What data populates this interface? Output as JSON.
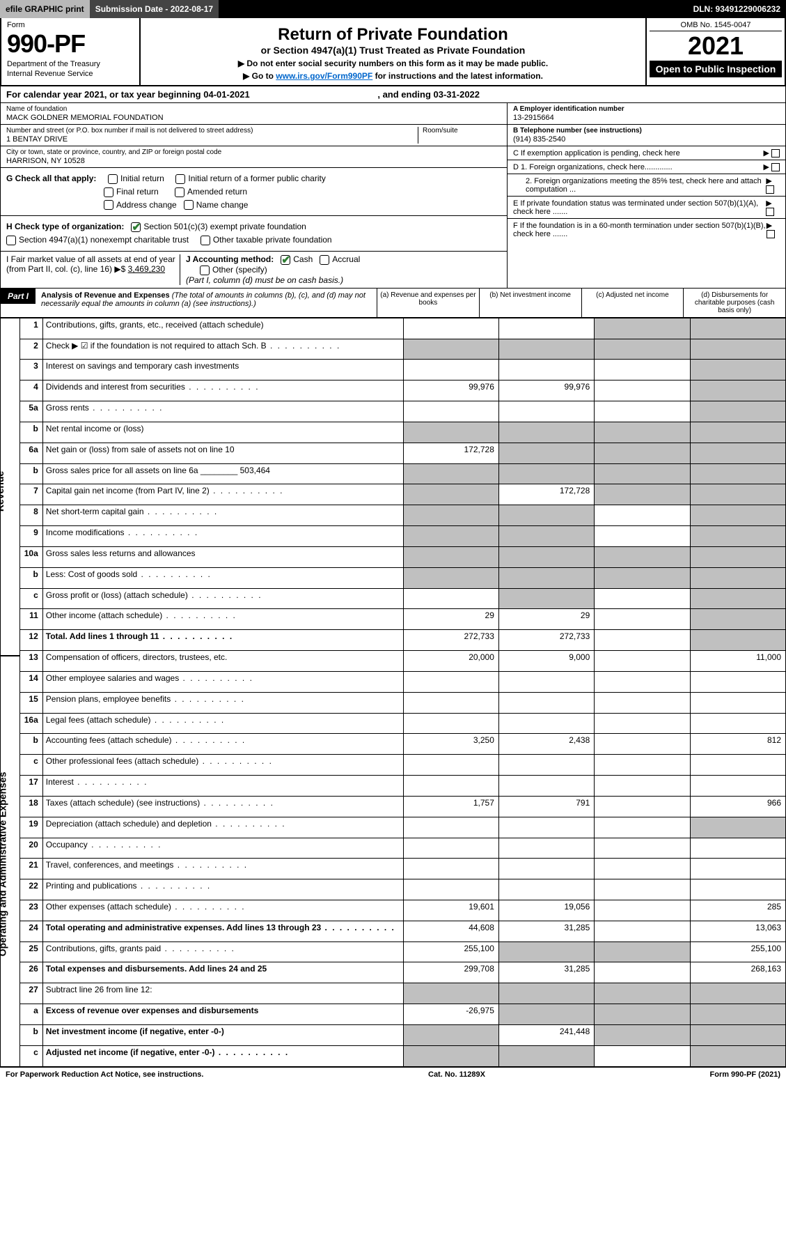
{
  "topbar": {
    "efile": "efile GRAPHIC print",
    "subdate_label": "Submission Date - 2022-08-17",
    "dln": "DLN: 93491229006232"
  },
  "formhead": {
    "form_word": "Form",
    "form_num": "990-PF",
    "dept": "Department of the Treasury",
    "irs": "Internal Revenue Service",
    "title": "Return of Private Foundation",
    "subtitle": "or Section 4947(a)(1) Trust Treated as Private Foundation",
    "note1": "▶ Do not enter social security numbers on this form as it may be made public.",
    "note2_pre": "▶ Go to ",
    "note2_link": "www.irs.gov/Form990PF",
    "note2_post": " for instructions and the latest information.",
    "omb": "OMB No. 1545-0047",
    "year": "2021",
    "inspect": "Open to Public Inspection"
  },
  "calendar": {
    "text_pre": "For calendar year 2021, or tax year beginning ",
    "begin": "04-01-2021",
    "mid": " , and ending ",
    "end": "03-31-2022"
  },
  "foundation": {
    "name_label": "Name of foundation",
    "name": "MACK GOLDNER MEMORIAL FOUNDATION",
    "addr_label": "Number and street (or P.O. box number if mail is not delivered to street address)",
    "addr": "1 BENTAY DRIVE",
    "room_label": "Room/suite",
    "city_label": "City or town, state or province, country, and ZIP or foreign postal code",
    "city": "HARRISON, NY  10528"
  },
  "right_info": {
    "a_label": "A Employer identification number",
    "a_val": "13-2915664",
    "b_label": "B Telephone number (see instructions)",
    "b_val": "(914) 835-2540",
    "c_label": "C If exemption application is pending, check here",
    "d1": "D 1. Foreign organizations, check here.............",
    "d2": "2. Foreign organizations meeting the 85% test, check here and attach computation ...",
    "e": "E  If private foundation status was terminated under section 507(b)(1)(A), check here .......",
    "f": "F  If the foundation is in a 60-month termination under section 507(b)(1)(B), check here ......."
  },
  "g_section": {
    "g_label": "G Check all that apply:",
    "initial": "Initial return",
    "initial_former": "Initial return of a former public charity",
    "final": "Final return",
    "amended": "Amended return",
    "address": "Address change",
    "name_change": "Name change",
    "h_label": "H Check type of organization:",
    "h_501c3": "Section 501(c)(3) exempt private foundation",
    "h_4947": "Section 4947(a)(1) nonexempt charitable trust",
    "h_other": "Other taxable private foundation",
    "i_label": "I Fair market value of all assets at end of year (from Part II, col. (c), line 16) ▶$",
    "i_val": "3,469,230",
    "j_label": "J Accounting method:",
    "j_cash": "Cash",
    "j_accrual": "Accrual",
    "j_other": "Other (specify)",
    "j_note": "(Part I, column (d) must be on cash basis.)"
  },
  "part1": {
    "label": "Part I",
    "title": "Analysis of Revenue and Expenses",
    "title_note": " (The total of amounts in columns (b), (c), and (d) may not necessarily equal the amounts in column (a) (see instructions).)",
    "col_a": "(a) Revenue and expenses per books",
    "col_b": "(b) Net investment income",
    "col_c": "(c) Adjusted net income",
    "col_d": "(d) Disbursements for charitable purposes (cash basis only)"
  },
  "side_labels": {
    "revenue": "Revenue",
    "expenses": "Operating and Administrative Expenses"
  },
  "rows": [
    {
      "n": "1",
      "d": "Contributions, gifts, grants, etc., received (attach schedule)",
      "a": "",
      "b": "",
      "c": "g",
      "dd": "g"
    },
    {
      "n": "2",
      "d": "Check ▶ ☑ if the foundation is not required to attach Sch. B",
      "dots": true,
      "a": "g",
      "b": "g",
      "c": "g",
      "dd": "g"
    },
    {
      "n": "3",
      "d": "Interest on savings and temporary cash investments",
      "a": "",
      "b": "",
      "c": "",
      "dd": "g"
    },
    {
      "n": "4",
      "d": "Dividends and interest from securities",
      "dots": true,
      "a": "99,976",
      "b": "99,976",
      "c": "",
      "dd": "g"
    },
    {
      "n": "5a",
      "d": "Gross rents",
      "dots": true,
      "a": "",
      "b": "",
      "c": "",
      "dd": "g"
    },
    {
      "n": "b",
      "d": "Net rental income or (loss)",
      "a": "g",
      "b": "g",
      "c": "g",
      "dd": "g"
    },
    {
      "n": "6a",
      "d": "Net gain or (loss) from sale of assets not on line 10",
      "a": "172,728",
      "b": "g",
      "c": "g",
      "dd": "g"
    },
    {
      "n": "b",
      "d": "Gross sales price for all assets on line 6a ________ 503,464",
      "a": "g",
      "b": "g",
      "c": "g",
      "dd": "g"
    },
    {
      "n": "7",
      "d": "Capital gain net income (from Part IV, line 2)",
      "dots": true,
      "a": "g",
      "b": "172,728",
      "c": "g",
      "dd": "g"
    },
    {
      "n": "8",
      "d": "Net short-term capital gain",
      "dots": true,
      "a": "g",
      "b": "g",
      "c": "",
      "dd": "g"
    },
    {
      "n": "9",
      "d": "Income modifications",
      "dots": true,
      "a": "g",
      "b": "g",
      "c": "",
      "dd": "g"
    },
    {
      "n": "10a",
      "d": "Gross sales less returns and allowances",
      "a": "g",
      "b": "g",
      "c": "g",
      "dd": "g"
    },
    {
      "n": "b",
      "d": "Less: Cost of goods sold",
      "dots": true,
      "a": "g",
      "b": "g",
      "c": "g",
      "dd": "g"
    },
    {
      "n": "c",
      "d": "Gross profit or (loss) (attach schedule)",
      "dots": true,
      "a": "",
      "b": "g",
      "c": "",
      "dd": "g"
    },
    {
      "n": "11",
      "d": "Other income (attach schedule)",
      "dots": true,
      "a": "29",
      "b": "29",
      "c": "",
      "dd": "g"
    },
    {
      "n": "12",
      "d": "Total. Add lines 1 through 11",
      "dots": true,
      "bold": true,
      "a": "272,733",
      "b": "272,733",
      "c": "",
      "dd": "g"
    },
    {
      "n": "13",
      "d": "Compensation of officers, directors, trustees, etc.",
      "a": "20,000",
      "b": "9,000",
      "c": "",
      "dd": "11,000"
    },
    {
      "n": "14",
      "d": "Other employee salaries and wages",
      "dots": true,
      "a": "",
      "b": "",
      "c": "",
      "dd": ""
    },
    {
      "n": "15",
      "d": "Pension plans, employee benefits",
      "dots": true,
      "a": "",
      "b": "",
      "c": "",
      "dd": ""
    },
    {
      "n": "16a",
      "d": "Legal fees (attach schedule)",
      "dots": true,
      "a": "",
      "b": "",
      "c": "",
      "dd": ""
    },
    {
      "n": "b",
      "d": "Accounting fees (attach schedule)",
      "dots": true,
      "a": "3,250",
      "b": "2,438",
      "c": "",
      "dd": "812"
    },
    {
      "n": "c",
      "d": "Other professional fees (attach schedule)",
      "dots": true,
      "a": "",
      "b": "",
      "c": "",
      "dd": ""
    },
    {
      "n": "17",
      "d": "Interest",
      "dots": true,
      "a": "",
      "b": "",
      "c": "",
      "dd": ""
    },
    {
      "n": "18",
      "d": "Taxes (attach schedule) (see instructions)",
      "dots": true,
      "a": "1,757",
      "b": "791",
      "c": "",
      "dd": "966"
    },
    {
      "n": "19",
      "d": "Depreciation (attach schedule) and depletion",
      "dots": true,
      "a": "",
      "b": "",
      "c": "",
      "dd": "g"
    },
    {
      "n": "20",
      "d": "Occupancy",
      "dots": true,
      "a": "",
      "b": "",
      "c": "",
      "dd": ""
    },
    {
      "n": "21",
      "d": "Travel, conferences, and meetings",
      "dots": true,
      "a": "",
      "b": "",
      "c": "",
      "dd": ""
    },
    {
      "n": "22",
      "d": "Printing and publications",
      "dots": true,
      "a": "",
      "b": "",
      "c": "",
      "dd": ""
    },
    {
      "n": "23",
      "d": "Other expenses (attach schedule)",
      "dots": true,
      "a": "19,601",
      "b": "19,056",
      "c": "",
      "dd": "285"
    },
    {
      "n": "24",
      "d": "Total operating and administrative expenses. Add lines 13 through 23",
      "dots": true,
      "bold": true,
      "a": "44,608",
      "b": "31,285",
      "c": "",
      "dd": "13,063"
    },
    {
      "n": "25",
      "d": "Contributions, gifts, grants paid",
      "dots": true,
      "a": "255,100",
      "b": "g",
      "c": "g",
      "dd": "255,100"
    },
    {
      "n": "26",
      "d": "Total expenses and disbursements. Add lines 24 and 25",
      "bold": true,
      "a": "299,708",
      "b": "31,285",
      "c": "",
      "dd": "268,163"
    },
    {
      "n": "27",
      "d": "Subtract line 26 from line 12:",
      "a": "g",
      "b": "g",
      "c": "g",
      "dd": "g"
    },
    {
      "n": "a",
      "d": "Excess of revenue over expenses and disbursements",
      "bold": true,
      "a": "-26,975",
      "b": "g",
      "c": "g",
      "dd": "g"
    },
    {
      "n": "b",
      "d": "Net investment income (if negative, enter -0-)",
      "bold": true,
      "a": "g",
      "b": "241,448",
      "c": "g",
      "dd": "g"
    },
    {
      "n": "c",
      "d": "Adjusted net income (if negative, enter -0-)",
      "dots": true,
      "bold": true,
      "a": "g",
      "b": "g",
      "c": "",
      "dd": "g"
    }
  ],
  "footer": {
    "left": "For Paperwork Reduction Act Notice, see instructions.",
    "mid": "Cat. No. 11289X",
    "right": "Form 990-PF (2021)"
  },
  "colors": {
    "grey": "#c0c0c0",
    "link": "#0066cc",
    "check": "#2e7d32"
  }
}
